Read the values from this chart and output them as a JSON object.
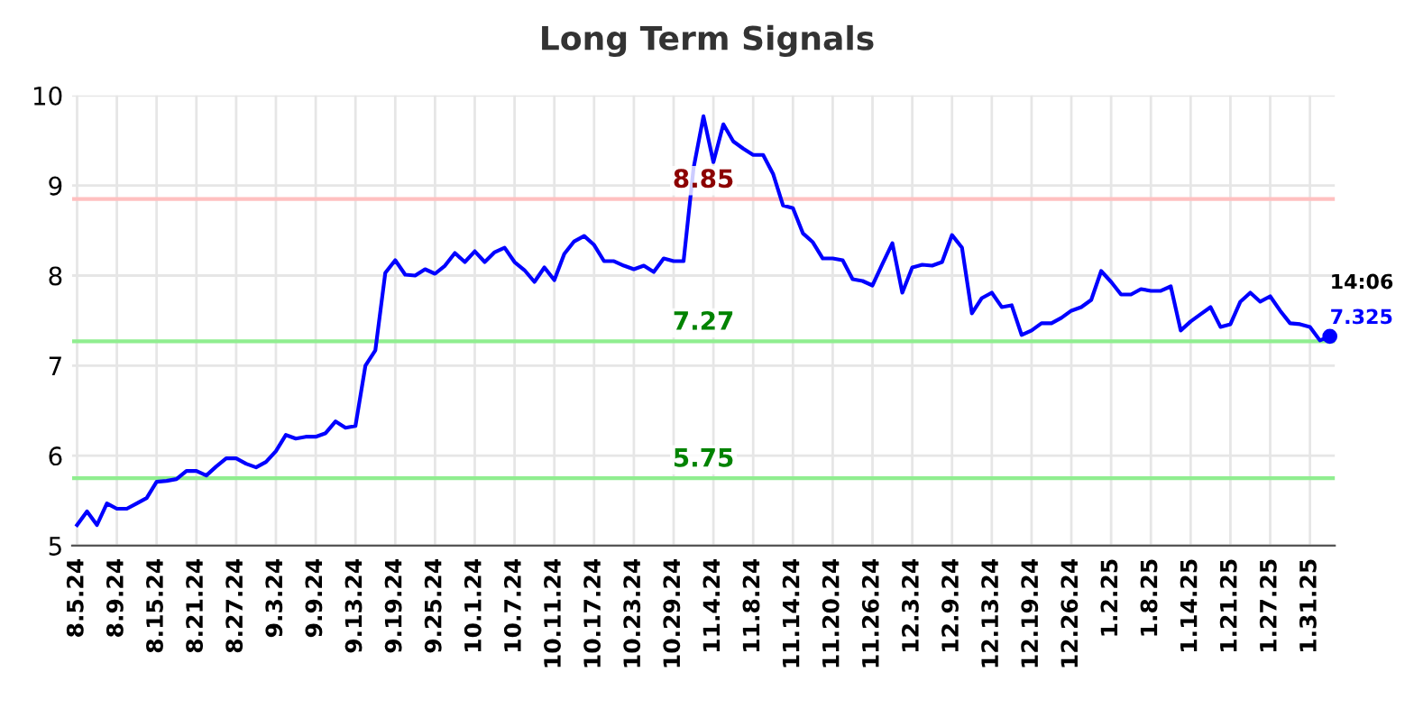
{
  "chart_data": {
    "type": "line",
    "title": "Long Term Signals",
    "categories": [
      "8.5.24",
      null,
      null,
      null,
      "8.9.24",
      null,
      null,
      null,
      "8.15.24",
      null,
      null,
      null,
      "8.21.24",
      null,
      null,
      null,
      "8.27.24",
      null,
      null,
      null,
      "9.3.24",
      null,
      null,
      null,
      "9.9.24",
      null,
      null,
      null,
      "9.13.24",
      null,
      null,
      null,
      "9.19.24",
      null,
      null,
      null,
      "9.25.24",
      null,
      null,
      null,
      "10.1.24",
      null,
      null,
      null,
      "10.7.24",
      null,
      null,
      null,
      "10.11.24",
      null,
      null,
      null,
      "10.17.24",
      null,
      null,
      null,
      "10.23.24",
      null,
      null,
      null,
      "10.29.24",
      null,
      null,
      null,
      "11.4.24",
      null,
      null,
      null,
      "11.8.24",
      null,
      null,
      null,
      "11.14.24",
      null,
      null,
      null,
      "11.20.24",
      null,
      null,
      null,
      "11.26.24",
      null,
      null,
      null,
      "12.3.24",
      null,
      null,
      null,
      "12.9.24",
      null,
      null,
      null,
      "12.13.24",
      null,
      null,
      null,
      "12.19.24",
      null,
      null,
      null,
      "12.26.24",
      null,
      null,
      null,
      "1.2.25",
      null,
      null,
      null,
      "1.8.25",
      null,
      null,
      null,
      "1.14.25",
      null,
      null,
      null,
      "1.21.25",
      null,
      null,
      null,
      "1.27.25",
      null,
      null,
      null,
      "1.31.25",
      null,
      null
    ],
    "series": [
      {
        "color": "#0000ff",
        "values": [
          5.23,
          5.38,
          5.23,
          5.47,
          5.41,
          5.41,
          5.47,
          5.53,
          5.71,
          5.72,
          5.74,
          5.83,
          5.83,
          5.78,
          5.88,
          5.97,
          5.97,
          5.91,
          5.87,
          5.93,
          6.05,
          6.23,
          6.19,
          6.21,
          6.21,
          6.25,
          6.38,
          6.31,
          6.33,
          7.0,
          7.17,
          8.03,
          8.17,
          8.01,
          8.0,
          8.07,
          8.02,
          8.11,
          8.25,
          8.15,
          8.27,
          8.15,
          8.26,
          8.31,
          8.15,
          8.06,
          7.93,
          8.09,
          7.95,
          8.24,
          8.38,
          8.44,
          8.34,
          8.16,
          8.16,
          8.11,
          8.07,
          8.11,
          8.04,
          8.19,
          8.16,
          8.16,
          9.19,
          9.77,
          9.26,
          9.68,
          9.49,
          9.41,
          9.34,
          9.34,
          9.13,
          8.78,
          8.75,
          8.47,
          8.37,
          8.19,
          8.19,
          8.17,
          7.96,
          7.94,
          7.89,
          8.13,
          8.36,
          7.81,
          8.09,
          8.12,
          8.11,
          8.15,
          8.45,
          8.31,
          7.58,
          7.75,
          7.81,
          7.65,
          7.67,
          7.34,
          7.39,
          7.47,
          7.47,
          7.53,
          7.61,
          7.65,
          7.73,
          8.05,
          7.93,
          7.79,
          7.79,
          7.85,
          7.83,
          7.83,
          7.88,
          7.39,
          7.49,
          7.57,
          7.65,
          7.43,
          7.46,
          7.71,
          7.81,
          7.71,
          7.77,
          7.61,
          7.47,
          7.46,
          7.43,
          7.28,
          7.325
        ]
      }
    ],
    "ylim": [
      5,
      10
    ],
    "yticks": [
      5,
      6,
      7,
      8,
      9,
      10
    ],
    "grid": true,
    "marker": "none",
    "line_style": "solid",
    "ref_lines": [
      {
        "axis": "y",
        "value": 8.85,
        "label": "8.85",
        "color": "#ffc0c0"
      },
      {
        "axis": "y",
        "value": 7.27,
        "label": "7.27",
        "color": "#90ee90"
      },
      {
        "axis": "y",
        "value": 5.75,
        "label": "5.75",
        "color": "#90ee90"
      }
    ],
    "annotations": [
      "14:06",
      "7.325"
    ]
  }
}
